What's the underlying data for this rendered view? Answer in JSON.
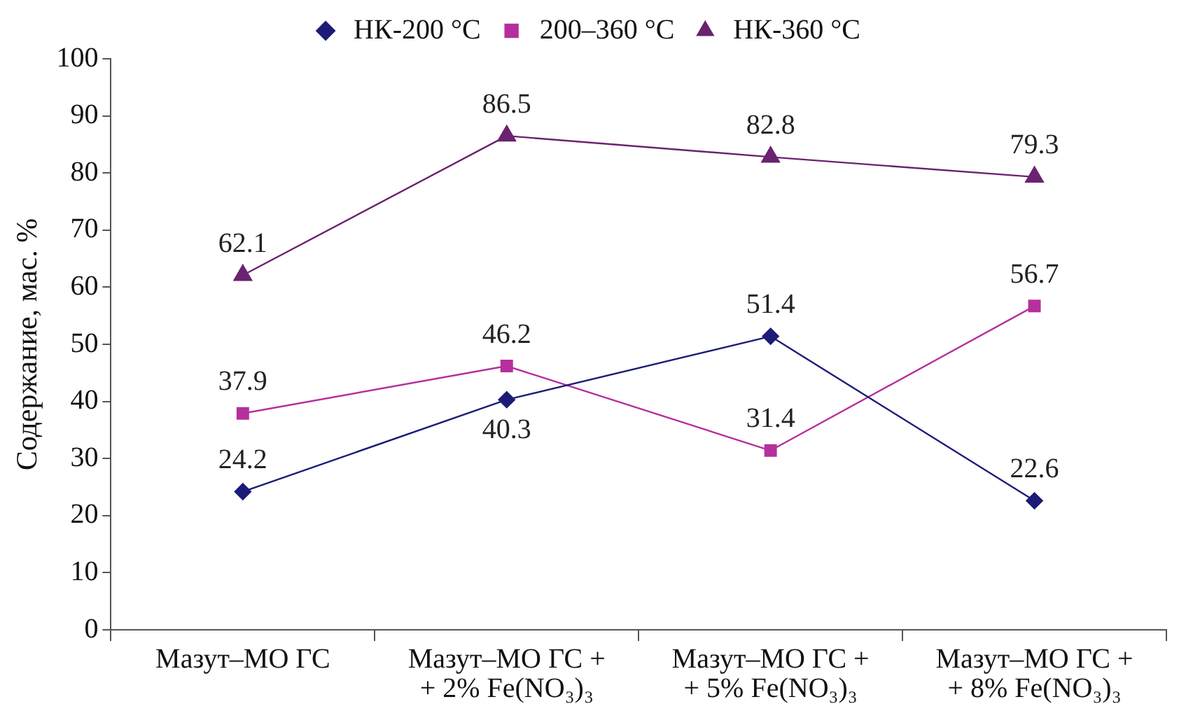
{
  "chart_data": {
    "type": "line",
    "ylabel": "Содержание, мас. %",
    "categories": [
      "Мазут–МО ГС",
      "Мазут–МО ГС +\n+ 2% Fe(NO₃)₃",
      "Мазут–МО ГС +\n+ 5% Fe(NO₃)₃",
      "Мазут–МО ГС +\n+ 8% Fe(NO₃)₃"
    ],
    "series": [
      {
        "name": "НК-200 °C",
        "color": "#1c1c78",
        "marker": "diamond",
        "values": [
          24.2,
          40.3,
          51.4,
          22.6
        ]
      },
      {
        "name": "200–360 °C",
        "color": "#b5309c",
        "marker": "square",
        "values": [
          37.9,
          46.2,
          31.4,
          56.7
        ]
      },
      {
        "name": "НК-360 °C",
        "color": "#6b2270",
        "marker": "triangle",
        "values": [
          62.1,
          86.5,
          82.8,
          79.3
        ]
      }
    ],
    "ylim": [
      0,
      100
    ],
    "yticks": [
      0,
      10,
      20,
      30,
      40,
      50,
      60,
      70,
      80,
      90,
      100
    ],
    "grid": false,
    "legend": "top",
    "data_labels": true,
    "line_style": "solid"
  }
}
